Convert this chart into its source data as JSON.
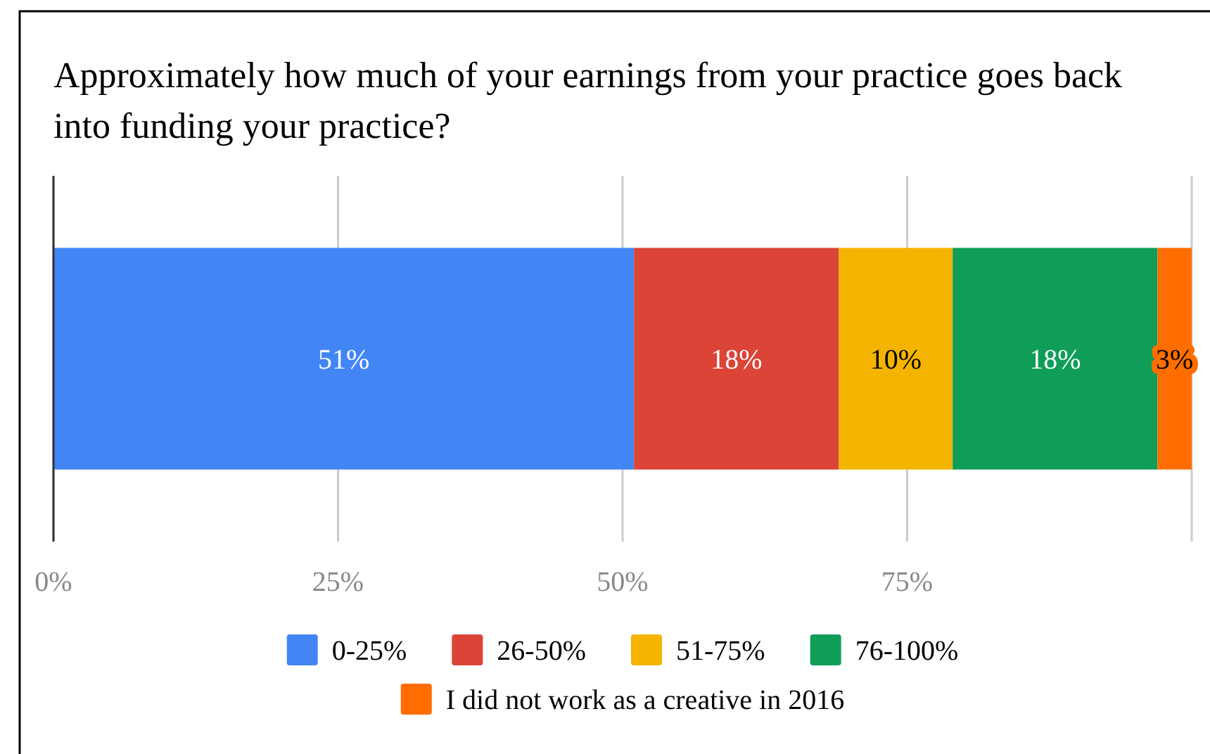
{
  "chart_data": {
    "type": "bar",
    "orientation": "horizontal",
    "stacked": true,
    "title": "Approximately how much of your earnings from your practice goes back into funding your practice?",
    "categories": [
      null
    ],
    "series": [
      {
        "name": "0-25%",
        "color": "#4285f4",
        "values": [
          51
        ],
        "value_labels": [
          "51%"
        ]
      },
      {
        "name": "26-50%",
        "color": "#db4437",
        "values": [
          18
        ],
        "value_labels": [
          "18%"
        ]
      },
      {
        "name": "51-75%",
        "color": "#f4b400",
        "values": [
          10
        ],
        "value_labels": [
          "10%"
        ]
      },
      {
        "name": "76-100%",
        "color": "#0f9d58",
        "values": [
          18
        ],
        "value_labels": [
          "18%"
        ]
      },
      {
        "name": "I did not work as a creative in 2016",
        "color": "#ff6d00",
        "values": [
          3
        ],
        "value_labels": [
          "3%"
        ]
      }
    ],
    "xlim": [
      0,
      100
    ],
    "xticks": [
      {
        "value": 0,
        "label": "0%"
      },
      {
        "value": 25,
        "label": "25%"
      },
      {
        "value": 50,
        "label": "50%"
      },
      {
        "value": 75,
        "label": "75%"
      },
      {
        "value": 100,
        "label": null
      }
    ],
    "grid": "x",
    "legend": "bottom"
  }
}
